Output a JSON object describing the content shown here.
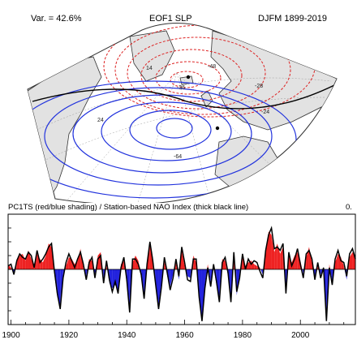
{
  "map": {
    "variance_label": "Var. = 42.6%",
    "title": "EOF1 SLP",
    "period": "DJFM 1899-2019",
    "contour_labels": [
      "-36",
      "-28",
      "14",
      "-24",
      "24",
      "-48",
      "-64"
    ],
    "colors": {
      "positive": "#2233dd",
      "negative": "#dd2222",
      "land": "#e0e0e0",
      "coast": "#333333"
    }
  },
  "timeseries": {
    "title": "PC1TS (red/blue shading) / Station-based NAO Index (thick black line)",
    "corner_label": "0.",
    "colors": {
      "positive_fill": "#ee2222",
      "negative_fill": "#2222dd",
      "line": "#000000"
    }
  },
  "chart_data": {
    "type": "area",
    "title": "PC1TS (red/blue shading) / Station-based NAO Index (thick black line)",
    "xlim": [
      1899,
      2019
    ],
    "ylim": [
      -3.2,
      3.2
    ],
    "x_ticks": [
      1900,
      1920,
      1940,
      1960,
      1980,
      2000
    ],
    "x_tick_labels": [
      "1900",
      "1920",
      "1940",
      "1960",
      "1980",
      "2000"
    ],
    "x_start": 1899,
    "series": [
      {
        "values": [
          0.3,
          0.1,
          -0.2,
          0.6,
          0.8,
          0.9,
          0.5,
          1.1,
          0.6,
          0.3,
          0.9,
          0.6,
          0.4,
          0.8,
          1.5,
          1.3,
          -0.3,
          -1.6,
          -2.1,
          -0.4,
          0.2,
          0.7,
          0.6,
          0.3,
          0.5,
          1.2,
          0.1,
          -0.4,
          0.6,
          0.5,
          -0.3,
          0.8,
          1.0,
          -0.6,
          0.3,
          -0.8,
          -1.1,
          -0.9,
          -1.2,
          0.3,
          0.5,
          -0.8,
          -2.3,
          0.4,
          0.8,
          0.5,
          -0.5,
          -1.5,
          0.5,
          1.4,
          0.7,
          -1.1,
          -2.1,
          -0.8,
          0.5,
          -0.4,
          -1.0,
          -0.3,
          0.4,
          -0.6,
          1.1,
          0.2,
          -0.4,
          -0.5,
          0.8,
          0.4,
          -1.8,
          -2.9,
          -0.9,
          0.3,
          -0.8,
          0.1,
          -0.9,
          -1.7,
          0.6,
          0.5,
          -0.4,
          -1.7,
          0.8,
          -1.5,
          -0.3,
          0.7,
          0.2,
          0.4,
          0.5,
          0.3,
          0.2,
          0.1,
          -0.3,
          0.9,
          2.2,
          2.0,
          1.0,
          1.5,
          0.9,
          1.3,
          -1.2,
          0.8,
          0.4,
          0.8,
          1.0,
          0.5,
          -0.3,
          0.7,
          1.3,
          0.4,
          -0.4,
          0.2,
          -0.3,
          -0.1,
          -2.8,
          0.3,
          -0.7,
          0.4,
          0.9,
          0.7,
          0.2,
          -0.6,
          0.7,
          1.0,
          0.8
        ]
      },
      {
        "values": [
          0.2,
          0.3,
          -0.3,
          0.5,
          0.9,
          0.7,
          0.6,
          1.0,
          0.8,
          0.1,
          1.1,
          0.4,
          0.6,
          0.9,
          1.3,
          1.5,
          -0.1,
          -1.4,
          -2.3,
          -0.5,
          0.4,
          0.9,
          0.5,
          0.1,
          0.6,
          1.0,
          0.3,
          -0.6,
          0.4,
          0.7,
          -0.5,
          0.6,
          0.8,
          -0.8,
          0.5,
          -0.6,
          -1.3,
          -0.7,
          -1.4,
          0.1,
          0.7,
          -0.6,
          -2.5,
          0.6,
          0.6,
          0.3,
          -0.3,
          -1.7,
          0.3,
          1.6,
          0.5,
          -0.9,
          -2.3,
          -1.0,
          0.7,
          -0.2,
          -1.2,
          -0.5,
          0.6,
          -0.4,
          1.3,
          0.4,
          -0.6,
          -0.7,
          0.6,
          0.6,
          -1.6,
          -3.0,
          -1.1,
          0.1,
          -1.0,
          0.3,
          -0.7,
          -1.9,
          0.4,
          0.7,
          -0.2,
          -1.9,
          1.0,
          -1.3,
          -0.5,
          0.9,
          0.0,
          0.6,
          0.3,
          0.5,
          0.4,
          -0.1,
          -0.5,
          1.1,
          2.0,
          2.4,
          1.2,
          1.3,
          1.1,
          1.5,
          -1.4,
          1.0,
          0.2,
          0.6,
          1.2,
          0.3,
          -0.5,
          0.9,
          1.1,
          0.6,
          -0.6,
          0.4,
          -0.5,
          0.1,
          -3.0,
          0.1,
          -0.9,
          0.6,
          1.1,
          0.5,
          0.4,
          -0.4,
          0.9,
          1.2,
          0.6
        ]
      }
    ]
  }
}
